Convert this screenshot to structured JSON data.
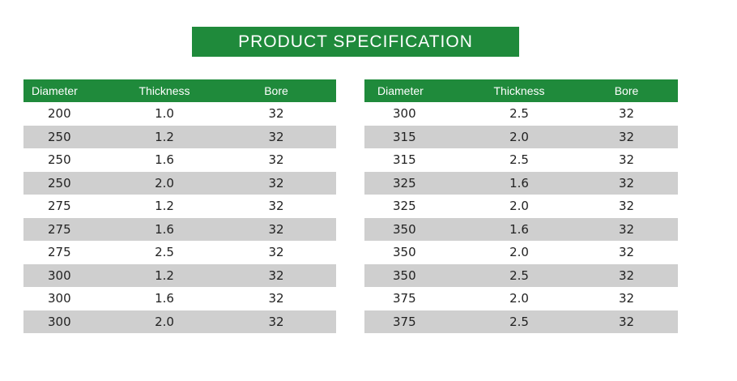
{
  "title": "PRODUCT SPECIFICATION",
  "colors": {
    "header_green": "#1f8a3b",
    "row_shade": "#cfcfcf"
  },
  "left_table": {
    "headers": [
      "Diameter",
      "Thickness",
      "Bore"
    ],
    "rows": [
      [
        "200",
        "1.0",
        "32"
      ],
      [
        "250",
        "1.2",
        "32"
      ],
      [
        "250",
        "1.6",
        "32"
      ],
      [
        "250",
        "2.0",
        "32"
      ],
      [
        "275",
        "1.2",
        "32"
      ],
      [
        "275",
        "1.6",
        "32"
      ],
      [
        "275",
        "2.5",
        "32"
      ],
      [
        "300",
        "1.2",
        "32"
      ],
      [
        "300",
        "1.6",
        "32"
      ],
      [
        "300",
        "2.0",
        "32"
      ]
    ]
  },
  "right_table": {
    "headers": [
      "Diameter",
      "Thickness",
      "Bore"
    ],
    "rows": [
      [
        "300",
        "2.5",
        "32"
      ],
      [
        "315",
        "2.0",
        "32"
      ],
      [
        "315",
        "2.5",
        "32"
      ],
      [
        "325",
        "1.6",
        "32"
      ],
      [
        "325",
        "2.0",
        "32"
      ],
      [
        "350",
        "1.6",
        "32"
      ],
      [
        "350",
        "2.0",
        "32"
      ],
      [
        "350",
        "2.5",
        "32"
      ],
      [
        "375",
        "2.0",
        "32"
      ],
      [
        "375",
        "2.5",
        "32"
      ]
    ]
  }
}
